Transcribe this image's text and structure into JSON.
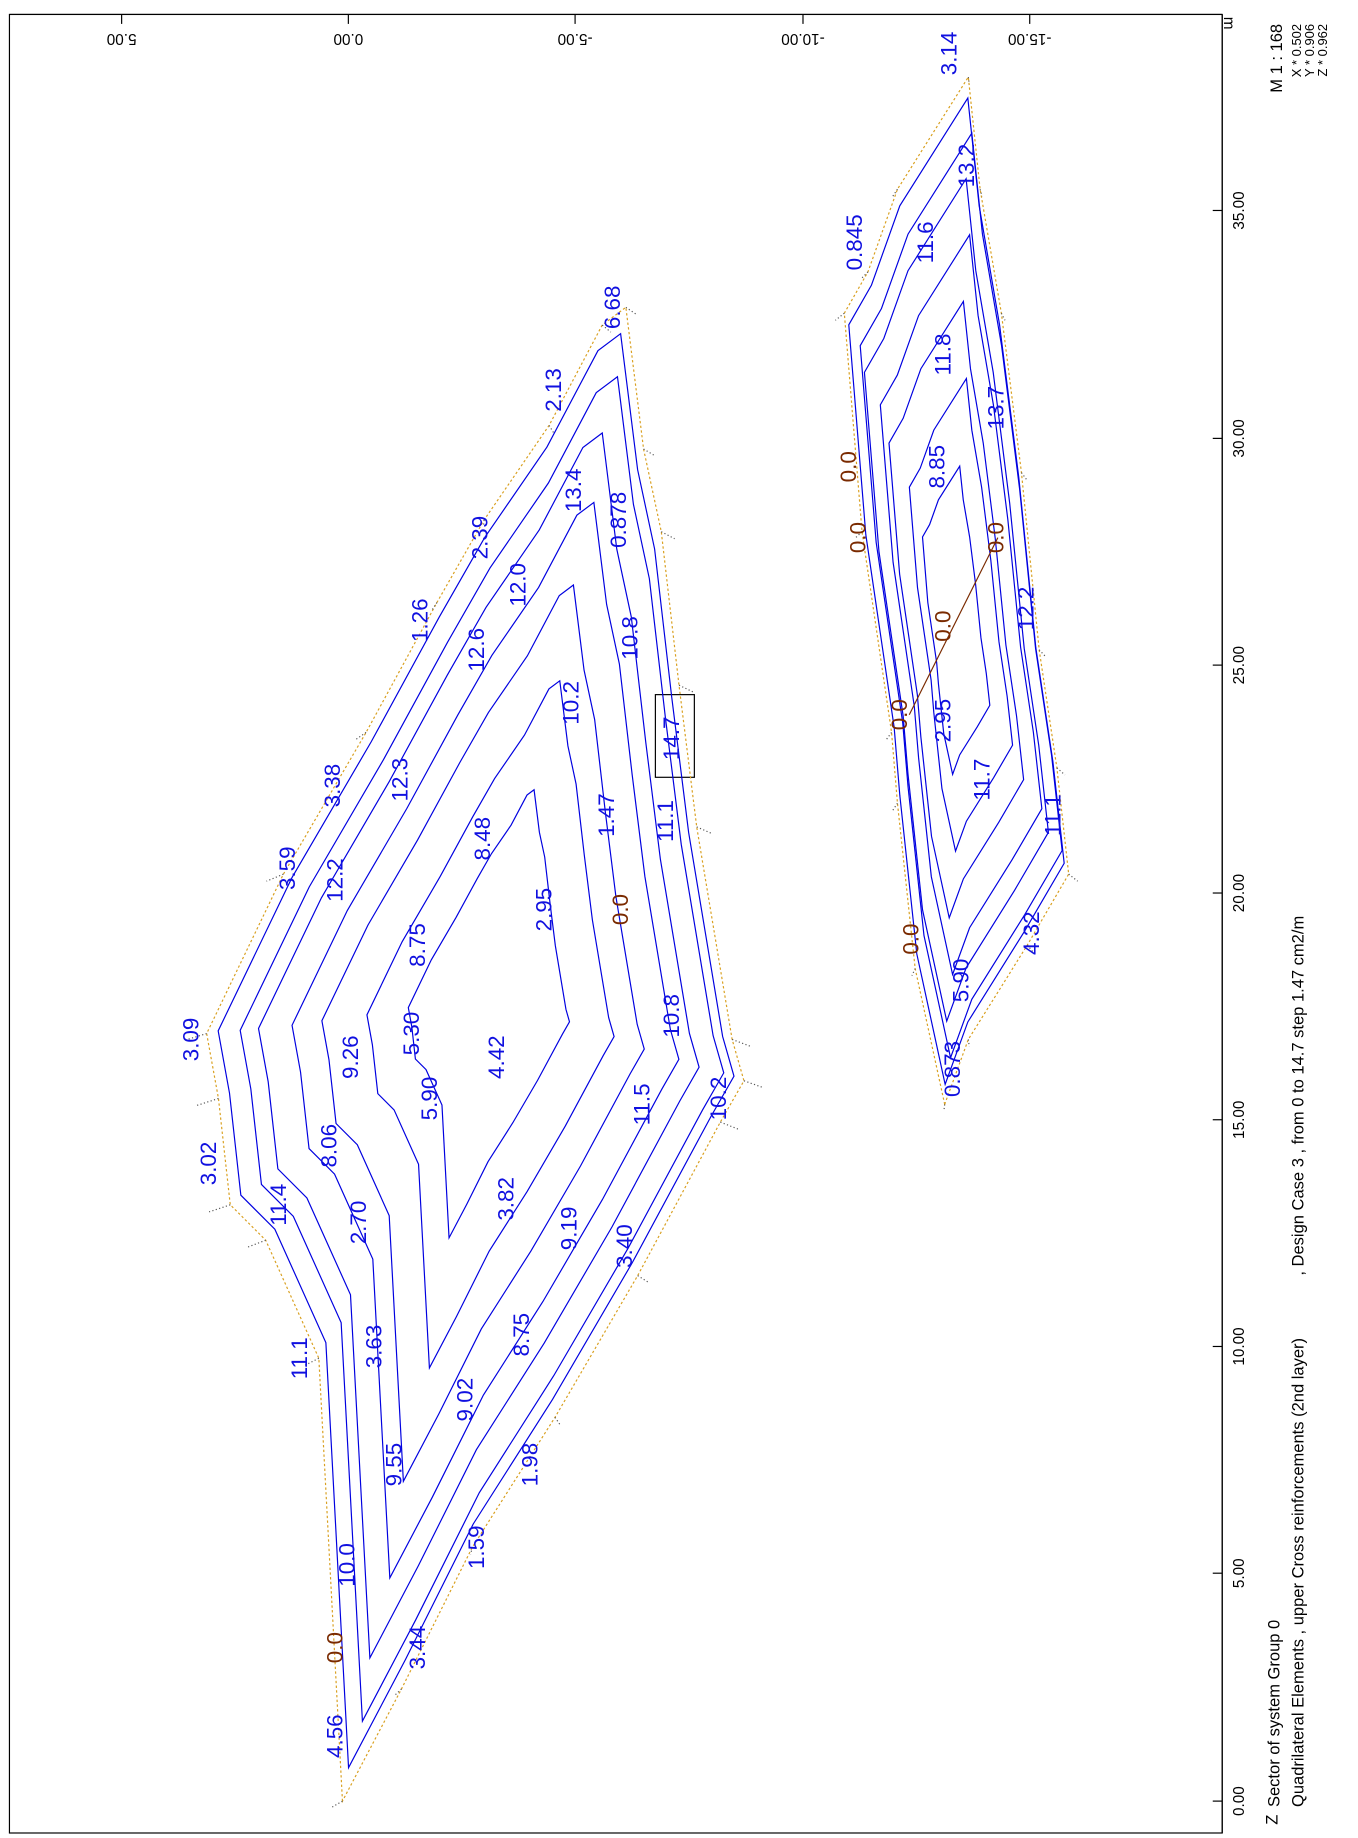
{
  "top_axis": {
    "ticks": [
      "5.00",
      "0.00",
      "-5.00",
      "-10.00",
      "-15.00"
    ],
    "unit": "m"
  },
  "right_axis": {
    "ticks": [
      "0.00",
      "5.00",
      "10.00",
      "15.00",
      "20.00",
      "25.00",
      "30.00",
      "35.00"
    ]
  },
  "scale": {
    "title": "M 1 : 168",
    "factors": [
      "X * 0.502",
      "Y * 0.906",
      "Z * 0.962"
    ]
  },
  "footer": {
    "line1": "Sector of system Group 0",
    "line2": "Quadrilateral Elements , upper Cross reinforcements (2nd layer)",
    "line3": ", Design Case 3   , from 0 to 14.7 step 1.47 cm2/m"
  },
  "contour_labels": [
    "4.56",
    "0.0",
    "3.44",
    "10.0",
    "1.59",
    "9.55",
    "1.98",
    "9.02",
    "11.1",
    "3.63",
    "8.75",
    "9.19",
    "3.40",
    "2.70",
    "3.82",
    "11.4",
    "8.06",
    "3.02",
    "5.90",
    "11.5",
    "10.2",
    "9.26",
    "4.42",
    "3.09",
    "5.30",
    "10.8",
    "8.75",
    "2.95",
    "0.0",
    "12.2",
    "3.59",
    "8.48",
    "1.47",
    "11.1",
    "12.3",
    "3.38",
    "14.7",
    "10.2",
    "12.6",
    "1.26",
    "10.8",
    "12.0",
    "2.39",
    "0.878",
    "13.4",
    "2.13",
    "6.68",
    "3.14",
    "13.2",
    "0.845",
    "11.6",
    "11.8",
    "13.7",
    "0.0",
    "8.85",
    "0.0",
    "0.0",
    "12.2",
    "0.0",
    "0.0",
    "2.95",
    "11.7",
    "11.1",
    "0.0",
    "4.32",
    "5.90",
    "0.873"
  ]
}
